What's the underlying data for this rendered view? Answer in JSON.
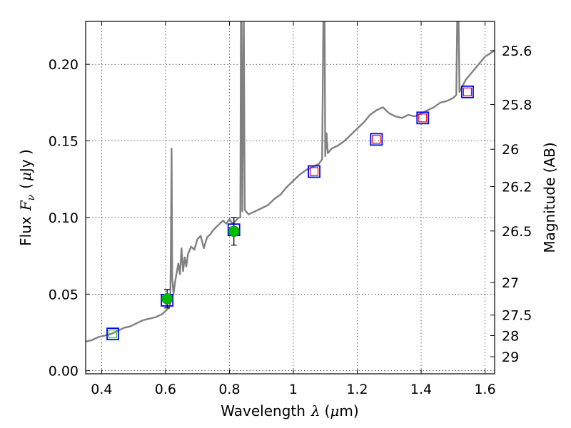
{
  "chart_data": {
    "type": "scatter",
    "title": "",
    "xlabel_prefix": "Wavelength",
    "xlabel_symbol": "λ",
    "xlabel_unit_open": "(",
    "xlabel_unit_mu": "μ",
    "xlabel_unit_rest": "m)",
    "ylabel_prefix": "Flux",
    "ylabel_symbol_F": "F",
    "ylabel_symbol_sub": "ν",
    "ylabel_unit_open": "(",
    "ylabel_unit_mu": "μ",
    "ylabel_unit_rest": "Jy )",
    "y2label": "Magnitude (AB)",
    "xlim": [
      0.35,
      1.63
    ],
    "ylim": [
      -0.002,
      0.228
    ],
    "grid": true,
    "xticks": [
      {
        "value": 0.4,
        "label": "0.4"
      },
      {
        "value": 0.6,
        "label": "0.6"
      },
      {
        "value": 0.8,
        "label": "0.8"
      },
      {
        "value": 1.0,
        "label": "1"
      },
      {
        "value": 1.2,
        "label": "1.2"
      },
      {
        "value": 1.4,
        "label": "1.4"
      },
      {
        "value": 1.6,
        "label": "1.6"
      }
    ],
    "yticks": [
      {
        "value": 0.0,
        "label": "0.00"
      },
      {
        "value": 0.05,
        "label": "0.05"
      },
      {
        "value": 0.1,
        "label": "0.10"
      },
      {
        "value": 0.15,
        "label": "0.15"
      },
      {
        "value": 0.2,
        "label": "0.20"
      }
    ],
    "y2ticks": [
      {
        "value": 25.6,
        "label": "25.6"
      },
      {
        "value": 25.8,
        "label": "25.8"
      },
      {
        "value": 26.0,
        "label": "26"
      },
      {
        "value": 26.2,
        "label": "26.2"
      },
      {
        "value": 26.5,
        "label": "26.5"
      },
      {
        "value": 27.0,
        "label": "27"
      },
      {
        "value": 27.5,
        "label": "27.5"
      },
      {
        "value": 28.0,
        "label": "28"
      },
      {
        "value": 29.0,
        "label": "29"
      }
    ],
    "sed_model": {
      "color": "#808080",
      "points": [
        [
          0.35,
          0.019
        ],
        [
          0.37,
          0.02
        ],
        [
          0.39,
          0.022
        ],
        [
          0.41,
          0.023
        ],
        [
          0.43,
          0.024
        ],
        [
          0.45,
          0.026
        ],
        [
          0.47,
          0.028
        ],
        [
          0.49,
          0.029
        ],
        [
          0.51,
          0.031
        ],
        [
          0.53,
          0.033
        ],
        [
          0.55,
          0.034
        ],
        [
          0.57,
          0.035
        ],
        [
          0.59,
          0.037
        ],
        [
          0.61,
          0.041
        ],
        [
          0.615,
          0.044
        ],
        [
          0.617,
          0.085
        ],
        [
          0.619,
          0.145
        ],
        [
          0.621,
          0.06
        ],
        [
          0.625,
          0.05
        ],
        [
          0.63,
          0.058
        ],
        [
          0.64,
          0.07
        ],
        [
          0.645,
          0.063
        ],
        [
          0.65,
          0.08
        ],
        [
          0.655,
          0.065
        ],
        [
          0.66,
          0.074
        ],
        [
          0.665,
          0.068
        ],
        [
          0.67,
          0.076
        ],
        [
          0.68,
          0.081
        ],
        [
          0.69,
          0.079
        ],
        [
          0.7,
          0.086
        ],
        [
          0.71,
          0.088
        ],
        [
          0.72,
          0.08
        ],
        [
          0.73,
          0.087
        ],
        [
          0.74,
          0.089
        ],
        [
          0.75,
          0.092
        ],
        [
          0.76,
          0.094
        ],
        [
          0.77,
          0.096
        ],
        [
          0.78,
          0.098
        ],
        [
          0.79,
          0.096
        ],
        [
          0.8,
          0.099
        ],
        [
          0.81,
          0.096
        ],
        [
          0.82,
          0.098
        ],
        [
          0.83,
          0.1
        ],
        [
          0.834,
          0.1
        ],
        [
          0.836,
          0.23
        ],
        [
          0.838,
          0.23
        ],
        [
          0.84,
          0.104
        ],
        [
          0.845,
          0.23
        ],
        [
          0.848,
          0.105
        ],
        [
          0.86,
          0.102
        ],
        [
          0.88,
          0.104
        ],
        [
          0.9,
          0.106
        ],
        [
          0.92,
          0.108
        ],
        [
          0.94,
          0.112
        ],
        [
          0.96,
          0.115
        ],
        [
          0.98,
          0.12
        ],
        [
          1.0,
          0.124
        ],
        [
          1.02,
          0.128
        ],
        [
          1.04,
          0.131
        ],
        [
          1.06,
          0.133
        ],
        [
          1.08,
          0.135
        ],
        [
          1.09,
          0.138
        ],
        [
          1.094,
          0.23
        ],
        [
          1.098,
          0.23
        ],
        [
          1.1,
          0.14
        ],
        [
          1.104,
          0.155
        ],
        [
          1.108,
          0.142
        ],
        [
          1.12,
          0.145
        ],
        [
          1.14,
          0.147
        ],
        [
          1.16,
          0.15
        ],
        [
          1.18,
          0.154
        ],
        [
          1.2,
          0.158
        ],
        [
          1.22,
          0.162
        ],
        [
          1.24,
          0.167
        ],
        [
          1.26,
          0.17
        ],
        [
          1.28,
          0.172
        ],
        [
          1.3,
          0.168
        ],
        [
          1.32,
          0.166
        ],
        [
          1.34,
          0.165
        ],
        [
          1.36,
          0.167
        ],
        [
          1.38,
          0.166
        ],
        [
          1.4,
          0.168
        ],
        [
          1.42,
          0.17
        ],
        [
          1.44,
          0.172
        ],
        [
          1.46,
          0.175
        ],
        [
          1.48,
          0.176
        ],
        [
          1.5,
          0.178
        ],
        [
          1.51,
          0.18
        ],
        [
          1.513,
          0.23
        ],
        [
          1.517,
          0.23
        ],
        [
          1.52,
          0.182
        ],
        [
          1.54,
          0.19
        ],
        [
          1.56,
          0.195
        ],
        [
          1.58,
          0.2
        ],
        [
          1.6,
          0.205
        ],
        [
          1.63,
          0.209
        ]
      ]
    },
    "series": [
      {
        "marker": "square",
        "color": "#0000ff",
        "points": [
          [
            0.435,
            0.024
          ],
          [
            0.605,
            0.046
          ],
          [
            0.814,
            0.092
          ],
          [
            1.065,
            0.13
          ],
          [
            1.26,
            0.151
          ],
          [
            1.405,
            0.165
          ],
          [
            1.545,
            0.182
          ]
        ]
      },
      {
        "marker": "square-small",
        "color": "#dd0000",
        "points": [
          [
            1.065,
            0.13
          ],
          [
            1.26,
            0.151
          ],
          [
            1.405,
            0.165
          ],
          [
            1.545,
            0.182
          ]
        ]
      },
      {
        "marker": "square-small",
        "color": "#33bb33",
        "points": [
          [
            0.435,
            0.024
          ]
        ]
      },
      {
        "marker": "circle",
        "color": "#00bb00",
        "points": [
          [
            0.605,
            0.047,
            0.006
          ],
          [
            0.814,
            0.091,
            0.009
          ]
        ]
      }
    ]
  }
}
